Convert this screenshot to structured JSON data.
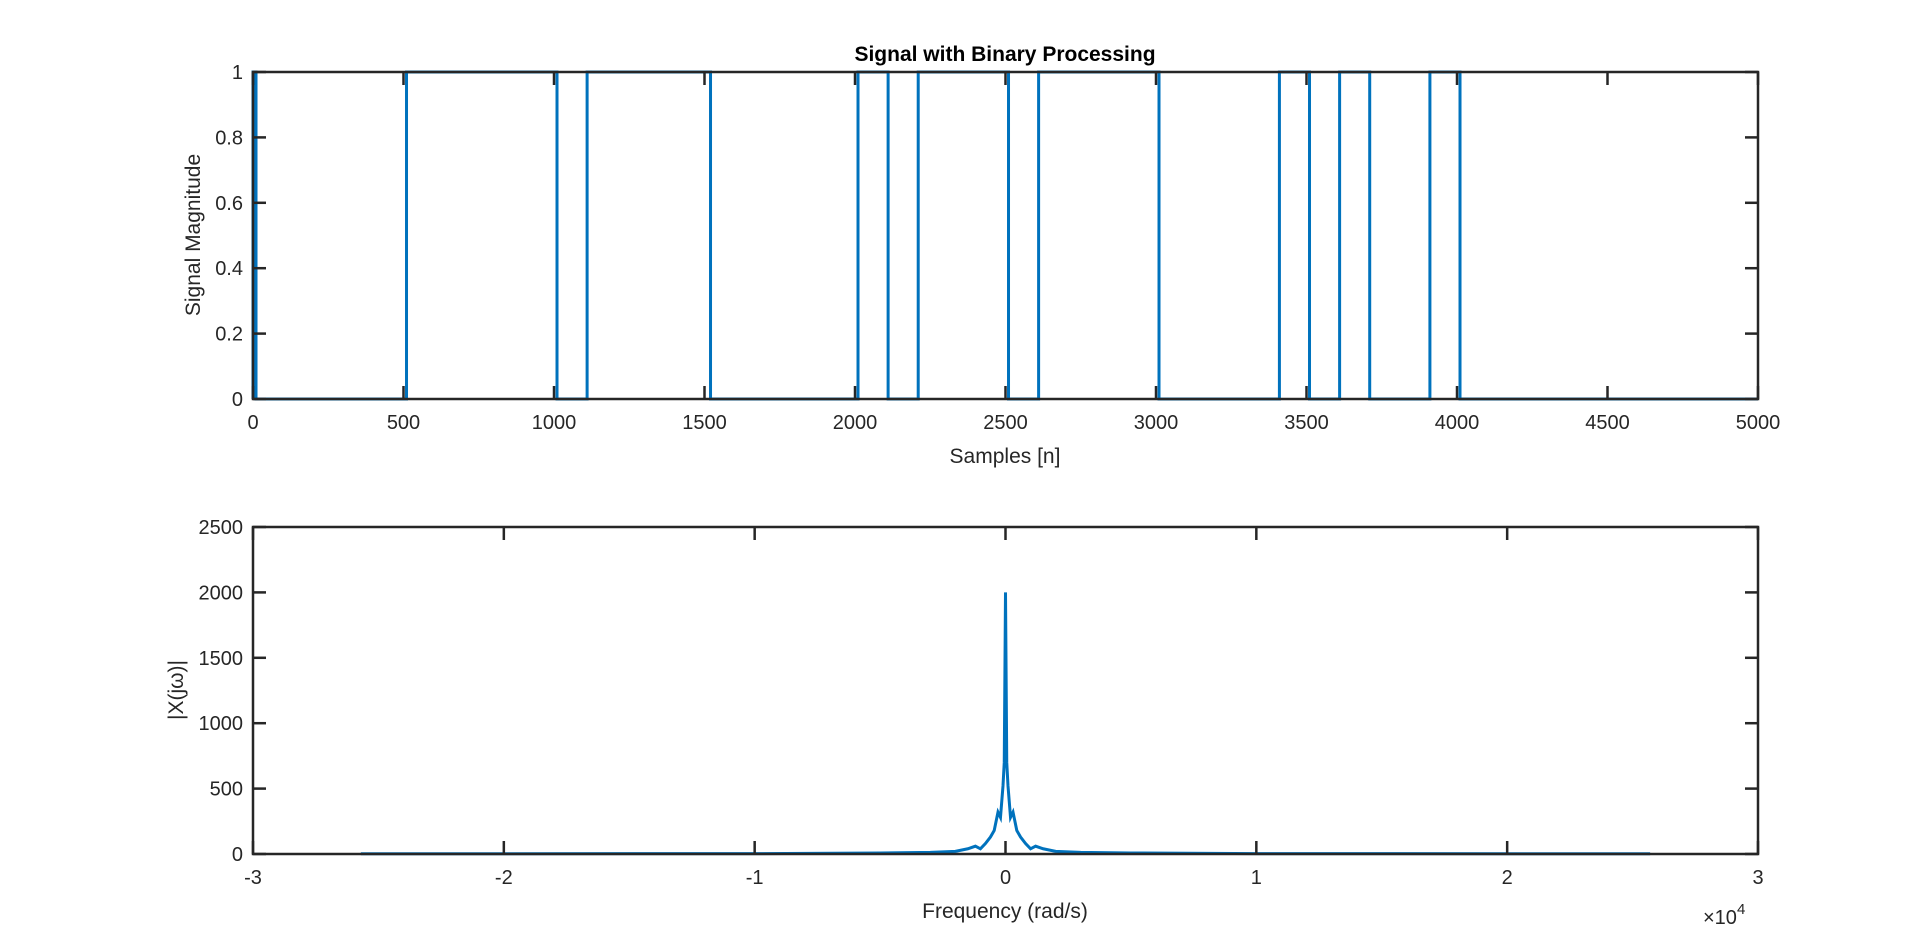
{
  "figure": {
    "background": "#ffffff",
    "axes_color": "#262626",
    "line_color": "#0072bd"
  },
  "chart_data": [
    {
      "type": "line",
      "title": "Signal with Binary Processing",
      "xlabel": "Samples [n]",
      "ylabel": "Signal Magnitude",
      "xlim": [
        0,
        5000
      ],
      "ylim": [
        0,
        1
      ],
      "xticks": [
        0,
        500,
        1000,
        1500,
        2000,
        2500,
        3000,
        3500,
        4000,
        4500,
        5000
      ],
      "xtick_labels": [
        "0",
        "500",
        "1000",
        "1500",
        "2000",
        "2500",
        "3000",
        "3500",
        "4000",
        "4500",
        "5000"
      ],
      "yticks": [
        0,
        0.2,
        0.4,
        0.6,
        0.8,
        1
      ],
      "ytick_labels": [
        "0",
        "0.2",
        "0.4",
        "0.6",
        "0.8",
        "1"
      ],
      "grid": false,
      "series": [
        {
          "x": [
            0,
            0,
            10,
            10,
            510,
            510,
            1010,
            1010,
            1110,
            1110,
            1520,
            1520,
            2010,
            2010,
            2110,
            2110,
            2210,
            2210,
            2510,
            2510,
            2610,
            2610,
            3010,
            3010,
            3410,
            3410,
            3510,
            3510,
            3610,
            3610,
            3710,
            3710,
            3910,
            3910,
            4010,
            4010,
            5000
          ],
          "y": [
            0,
            1,
            1,
            0,
            0,
            1,
            1,
            0,
            0,
            1,
            1,
            0,
            0,
            1,
            1,
            0,
            0,
            1,
            1,
            0,
            0,
            1,
            1,
            0,
            0,
            1,
            1,
            0,
            0,
            1,
            1,
            0,
            0,
            1,
            1,
            0,
            0
          ]
        }
      ]
    },
    {
      "type": "line",
      "title": "",
      "xlabel": "Frequency (rad/s)",
      "ylabel": "|X(jω)|",
      "xlim": [
        -30000,
        30000
      ],
      "ylim": [
        0,
        2500
      ],
      "xticks": [
        -30000,
        -20000,
        -10000,
        0,
        10000,
        20000,
        30000
      ],
      "xtick_labels": [
        "-3",
        "-2",
        "-1",
        "0",
        "1",
        "2",
        "3"
      ],
      "x_exponent_label": "×10",
      "x_exponent_power": "4",
      "yticks": [
        0,
        500,
        1000,
        1500,
        2000,
        2500
      ],
      "ytick_labels": [
        "0",
        "500",
        "1000",
        "1500",
        "2000",
        "2500"
      ],
      "grid": false,
      "series": [
        {
          "x": [
            -25700,
            -10000,
            -5000,
            -3000,
            -2000,
            -1500,
            -1200,
            -1000,
            -800,
            -600,
            -450,
            -300,
            -200,
            -100,
            -50,
            0,
            50,
            100,
            200,
            300,
            450,
            600,
            800,
            1000,
            1200,
            1500,
            2000,
            3000,
            5000,
            10000,
            25700
          ],
          "y": [
            2,
            3,
            8,
            12,
            20,
            40,
            60,
            40,
            80,
            130,
            180,
            320,
            280,
            520,
            700,
            2000,
            700,
            520,
            280,
            320,
            180,
            130,
            80,
            40,
            60,
            40,
            20,
            12,
            8,
            3,
            2
          ]
        }
      ]
    }
  ]
}
